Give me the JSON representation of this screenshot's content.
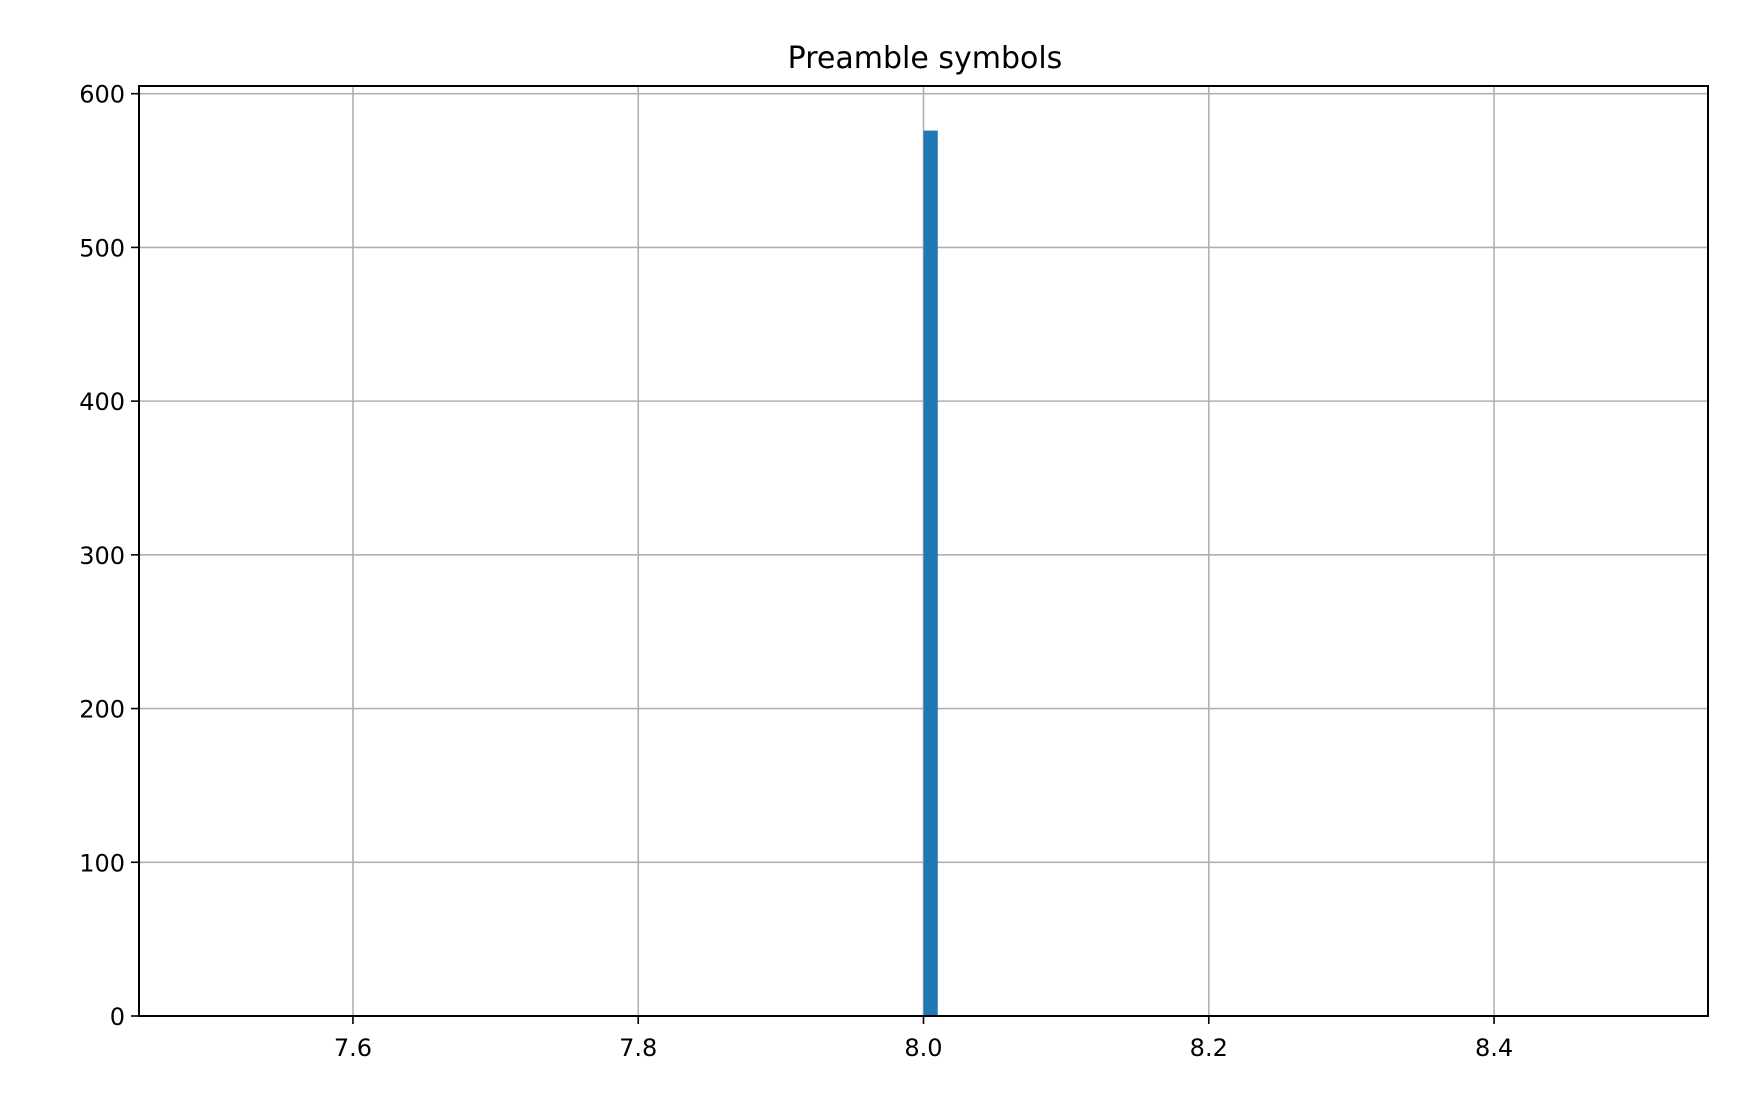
{
  "chart_data": {
    "type": "bar",
    "title": "Preamble symbols",
    "xlabel": "",
    "ylabel": "",
    "xlim": [
      7.45,
      8.55
    ],
    "ylim": [
      0,
      605
    ],
    "xticks": [
      7.6,
      7.8,
      8.0,
      8.2,
      8.4
    ],
    "xtick_labels": [
      "7.6",
      "7.8",
      "8.0",
      "8.2",
      "8.4"
    ],
    "yticks": [
      0,
      100,
      200,
      300,
      400,
      500,
      600
    ],
    "ytick_labels": [
      "0",
      "100",
      "200",
      "300",
      "400",
      "500",
      "600"
    ],
    "grid": true,
    "bars": [
      {
        "x0": 8.0,
        "x1": 8.01,
        "value": 576
      }
    ],
    "colors": {
      "bar": "#1f77b4",
      "grid": "#b0b0b0",
      "axis": "#000000"
    }
  }
}
